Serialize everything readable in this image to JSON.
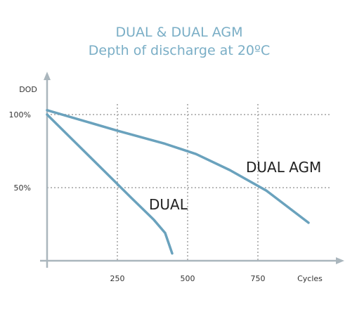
{
  "chart_data": {
    "type": "line",
    "title": "DUAL & DUAL AGM",
    "subtitle": "Depth of discharge at 20ºC",
    "ylabel": "DOD",
    "xlabel": "Cycles",
    "x_ticks": [
      250,
      500,
      750
    ],
    "x_tick_labels": [
      "250",
      "500",
      "750"
    ],
    "y_ticks": [
      50,
      100
    ],
    "y_tick_labels": [
      "50%",
      "100%"
    ],
    "xlim": [
      0,
      1000
    ],
    "ylim": [
      0,
      130
    ],
    "grid": true,
    "series": [
      {
        "name": "DUAL AGM",
        "color": "#6aa2bd",
        "x": [
          0,
          250,
          420,
          530,
          650,
          780,
          930
        ],
        "y": [
          103,
          89,
          80,
          73,
          62,
          48,
          26
        ]
      },
      {
        "name": "DUAL",
        "color": "#6aa2bd",
        "x": [
          0,
          100,
          200,
          300,
          380,
          420,
          445
        ],
        "y": [
          100,
          81,
          62,
          43,
          28,
          19,
          5
        ]
      }
    ]
  }
}
